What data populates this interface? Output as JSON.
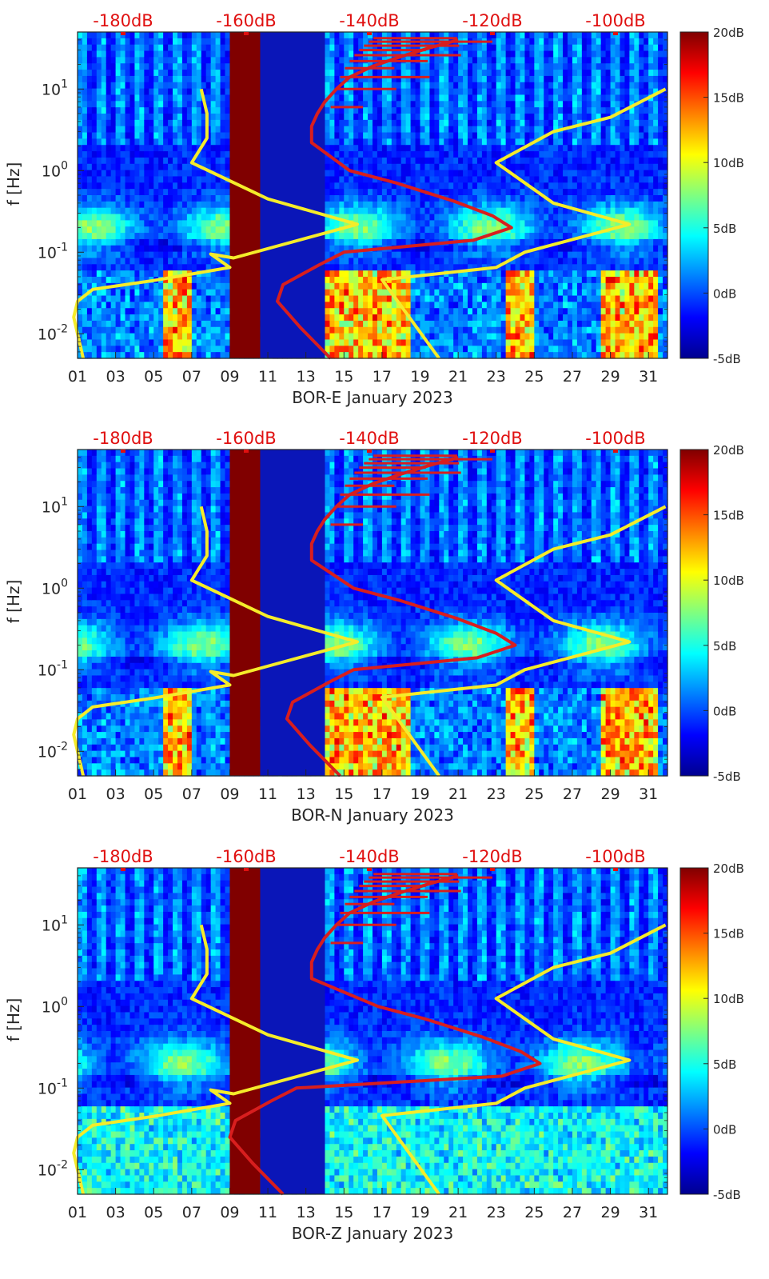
{
  "colors": {
    "noise_model_curve": "#f5ec2a",
    "psd_curve": "#d81e1e",
    "top_axis_text": "#e01010",
    "colormap": "jet"
  },
  "chart_data": [
    {
      "type": "heatmap",
      "title": "",
      "xlabel": "BOR-E January 2023",
      "ylabel": "f [Hz]",
      "xticks": [
        "01",
        "03",
        "05",
        "07",
        "09",
        "11",
        "13",
        "15",
        "17",
        "19",
        "21",
        "23",
        "25",
        "27",
        "29",
        "31"
      ],
      "yscale": "log",
      "ylim": [
        0.005,
        50
      ],
      "yticks": [
        {
          "value": 0.01,
          "base": "10",
          "exp": "-2"
        },
        {
          "value": 0.1,
          "base": "10",
          "exp": "-1"
        },
        {
          "value": 1,
          "base": "10",
          "exp": "0"
        },
        {
          "value": 10,
          "base": "10",
          "exp": "1"
        }
      ],
      "top_axis_ticks": [
        "-180dB",
        "-160dB",
        "-140dB",
        "-120dB",
        "-100dB"
      ],
      "colorbar": {
        "ticks": [
          "20dB",
          "15dB",
          "10dB",
          "5dB",
          "0dB",
          "-5dB"
        ],
        "range": [
          -5,
          20
        ]
      },
      "gap_days": [
        9.0,
        10.6
      ],
      "psd_curve_peak_day": 23.8,
      "psd_curve_low_day": 11.5
    },
    {
      "type": "heatmap",
      "title": "",
      "xlabel": "BOR-N January 2023",
      "ylabel": "f [Hz]",
      "xticks": [
        "01",
        "03",
        "05",
        "07",
        "09",
        "11",
        "13",
        "15",
        "17",
        "19",
        "21",
        "23",
        "25",
        "27",
        "29",
        "31"
      ],
      "yscale": "log",
      "ylim": [
        0.005,
        50
      ],
      "yticks": [
        {
          "value": 0.01,
          "base": "10",
          "exp": "-2"
        },
        {
          "value": 0.1,
          "base": "10",
          "exp": "-1"
        },
        {
          "value": 1,
          "base": "10",
          "exp": "0"
        },
        {
          "value": 10,
          "base": "10",
          "exp": "1"
        }
      ],
      "top_axis_ticks": [
        "-180dB",
        "-160dB",
        "-140dB",
        "-120dB",
        "-100dB"
      ],
      "colorbar": {
        "ticks": [
          "20dB",
          "15dB",
          "10dB",
          "5dB",
          "0dB",
          "-5dB"
        ],
        "range": [
          -5,
          20
        ]
      },
      "gap_days": [
        9.0,
        10.6
      ],
      "psd_curve_peak_day": 24.0,
      "psd_curve_low_day": 12.0
    },
    {
      "type": "heatmap",
      "title": "",
      "xlabel": "BOR-Z January 2023",
      "ylabel": "f [Hz]",
      "xticks": [
        "01",
        "03",
        "05",
        "07",
        "09",
        "11",
        "13",
        "15",
        "17",
        "19",
        "21",
        "23",
        "25",
        "27",
        "29",
        "31"
      ],
      "yscale": "log",
      "ylim": [
        0.005,
        50
      ],
      "yticks": [
        {
          "value": 0.01,
          "base": "10",
          "exp": "-2"
        },
        {
          "value": 0.1,
          "base": "10",
          "exp": "-1"
        },
        {
          "value": 1,
          "base": "10",
          "exp": "0"
        },
        {
          "value": 10,
          "base": "10",
          "exp": "1"
        }
      ],
      "top_axis_ticks": [
        "-180dB",
        "-160dB",
        "-140dB",
        "-120dB",
        "-100dB"
      ],
      "colorbar": {
        "ticks": [
          "20dB",
          "15dB",
          "10dB",
          "5dB",
          "0dB",
          "-5dB"
        ],
        "range": [
          -5,
          20
        ]
      },
      "gap_days": [
        9.0,
        10.6
      ],
      "psd_curve_peak_day": 25.3,
      "psd_curve_low_day": 9.0
    }
  ]
}
